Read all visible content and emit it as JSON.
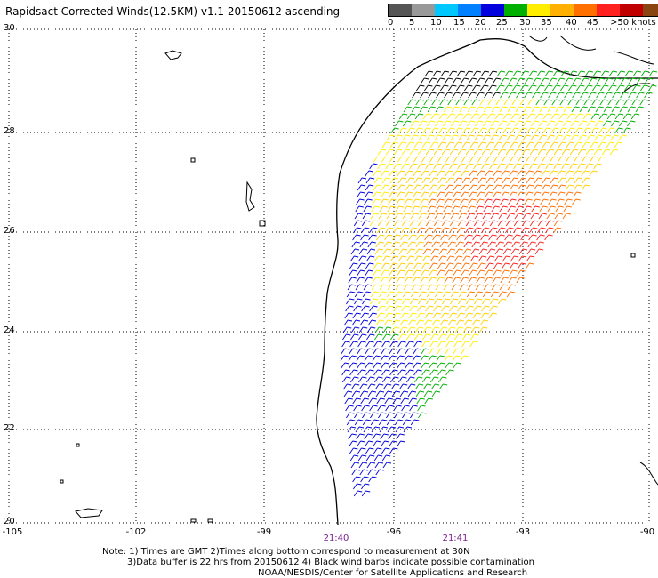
{
  "title": "Rapidsact Corrected Winds(12.5KM) v1.1 20150612 ascending",
  "legend": {
    "colors": [
      "#555555",
      "#999999",
      "#00c8ff",
      "#0080ff",
      "#0000dd",
      "#00b000",
      "#ffee00",
      "#ffb000",
      "#ff7000",
      "#ff2020",
      "#c00000",
      "#8b4513",
      "#ff00ff",
      "#a000c0",
      "#4000a0"
    ],
    "labels": [
      "0",
      "5",
      "10",
      "15",
      "20",
      "25",
      "30",
      "35",
      "40",
      "45",
      ">50 knots"
    ]
  },
  "axes": {
    "lat_labels": [
      "30",
      "28",
      "26",
      "24",
      "22",
      "20"
    ],
    "lon_labels": [
      "-105",
      "-102",
      "-99",
      "-96",
      "-93",
      "-90"
    ]
  },
  "times": [
    "21:40",
    "21:41"
  ],
  "notes": [
    "Note: 1) Times are GMT 2)Times along bottom correspond to measurement at 30N",
    "3)Data buffer is 22 hrs from 20150612 4) Black wind barbs indicate possible contamination",
    "NOAA/NESDIS/Center for Satellite Applications and Research"
  ]
}
